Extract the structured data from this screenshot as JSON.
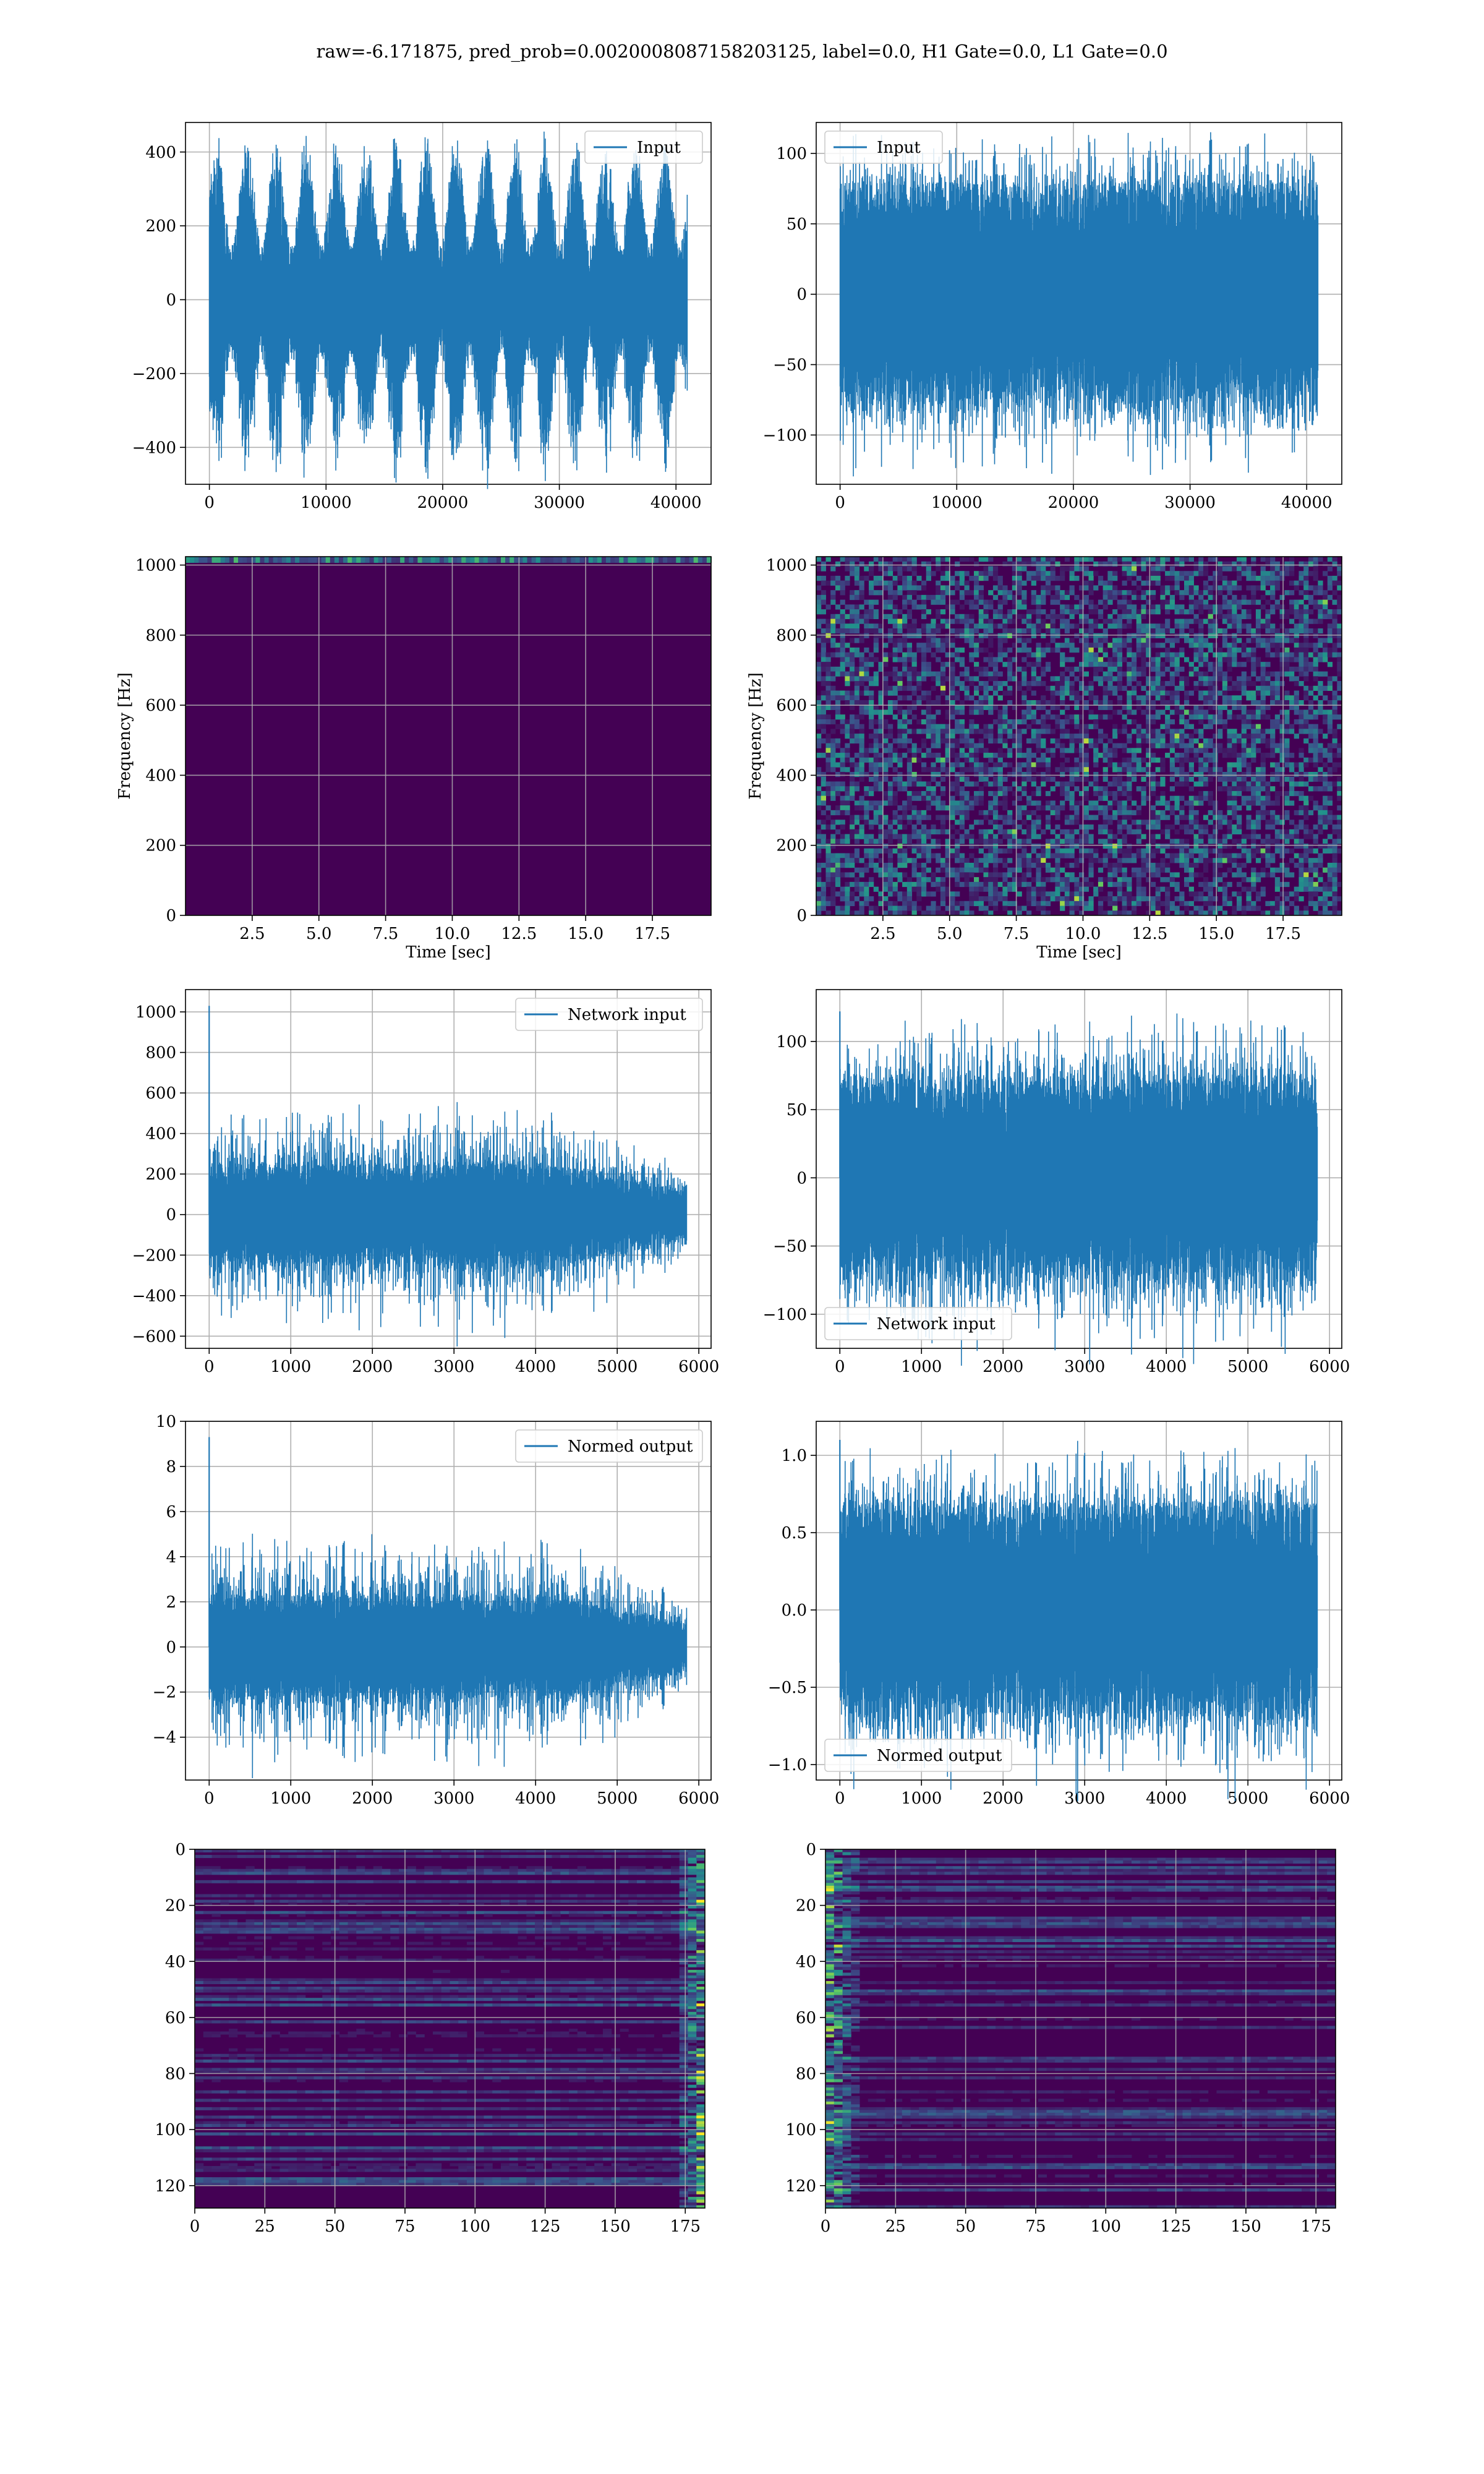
{
  "suptitle": "raw=-6.171875, pred_prob=0.0020008087158203125, label=0.0, H1 Gate=0.0, L1 Gate=0.0",
  "colors": {
    "line": "#1f77b4",
    "grid": "#b0b0b0",
    "spine": "#000000",
    "viridis_dark": "#440154",
    "viridis_mid": "#31688e",
    "viridis_green": "#35b779",
    "viridis_yellow": "#fde725"
  },
  "chart_data": [
    {
      "id": "input-h1",
      "type": "line",
      "legend": "Input",
      "legend_loc": "upper right",
      "x": [
        0,
        40960
      ],
      "xlim": [
        -2048,
        43008
      ],
      "ylim": [
        -500,
        480
      ],
      "xticks": [
        0,
        10000,
        20000,
        30000,
        40000
      ],
      "yticks": [
        -400,
        -200,
        0,
        200,
        400
      ],
      "ytick_labels": [
        "−400",
        "−200",
        "0",
        "200",
        "400"
      ],
      "envelope": {
        "amp_min": 150,
        "amp_max": 470,
        "cycles": 16,
        "noise": 0.25
      }
    },
    {
      "id": "input-l1",
      "type": "line",
      "legend": "Input",
      "legend_loc": "upper left",
      "x": [
        0,
        40960
      ],
      "xlim": [
        -2048,
        43008
      ],
      "ylim": [
        -135,
        122
      ],
      "xticks": [
        0,
        10000,
        20000,
        30000,
        40000
      ],
      "yticks": [
        -100,
        -50,
        0,
        50,
        100
      ],
      "ytick_labels": [
        "−100",
        "−50",
        "0",
        "50",
        "100"
      ],
      "envelope": {
        "amp_min": 80,
        "amp_max": 120,
        "cycles": 0,
        "noise": 0.2
      }
    },
    {
      "id": "spec-h1",
      "type": "heatmap",
      "cmap": "viridis",
      "pattern": "top-band",
      "xlabel": "Time [sec]",
      "ylabel": "Frequency [Hz]",
      "xlim": [
        0,
        19.7
      ],
      "ylim": [
        0,
        1024
      ],
      "xticks": [
        2.5,
        5.0,
        7.5,
        10.0,
        12.5,
        15.0,
        17.5
      ],
      "yticks": [
        0,
        200,
        400,
        600,
        800,
        1000
      ]
    },
    {
      "id": "spec-l1",
      "type": "heatmap",
      "cmap": "viridis",
      "pattern": "noise",
      "xlabel": "Time [sec]",
      "ylabel": "Frequency [Hz]",
      "xlim": [
        0,
        19.7
      ],
      "ylim": [
        0,
        1024
      ],
      "xticks": [
        2.5,
        5.0,
        7.5,
        10.0,
        12.5,
        15.0,
        17.5
      ],
      "yticks": [
        0,
        200,
        400,
        600,
        800,
        1000
      ]
    },
    {
      "id": "network-input-h1",
      "type": "line",
      "legend": "Network input",
      "legend_loc": "upper right",
      "x": [
        0,
        5850
      ],
      "xlim": [
        -290,
        6150
      ],
      "ylim": [
        -660,
        1110
      ],
      "xticks": [
        0,
        1000,
        2000,
        3000,
        4000,
        5000,
        6000
      ],
      "yticks": [
        -600,
        -400,
        -200,
        0,
        200,
        400,
        600,
        800,
        1000
      ],
      "ytick_labels": [
        "−600",
        "−400",
        "−200",
        "0",
        "200",
        "400",
        "600",
        "800",
        "1000"
      ],
      "spike": {
        "x": 0,
        "y": 1030
      },
      "envelope": {
        "amp_min": 250,
        "amp_max": 560,
        "cycles": 0,
        "noise": 0.25,
        "taper": 0.55
      }
    },
    {
      "id": "network-input-l1",
      "type": "line",
      "legend": "Network input",
      "legend_loc": "lower left",
      "x": [
        0,
        5850
      ],
      "xlim": [
        -290,
        6150
      ],
      "ylim": [
        -125,
        138
      ],
      "xticks": [
        0,
        1000,
        2000,
        3000,
        4000,
        5000,
        6000
      ],
      "yticks": [
        -100,
        -50,
        0,
        50,
        100
      ],
      "ytick_labels": [
        "−100",
        "−50",
        "0",
        "50",
        "100"
      ],
      "spike": {
        "x": 0,
        "y": 122
      },
      "envelope": {
        "amp_min": 75,
        "amp_max": 125,
        "cycles": 0,
        "noise": 0.2
      }
    },
    {
      "id": "normed-output-h1",
      "type": "line",
      "legend": "Normed output",
      "legend_loc": "upper right",
      "x": [
        0,
        5850
      ],
      "xlim": [
        -290,
        6150
      ],
      "ylim": [
        -5.9,
        10.0
      ],
      "xticks": [
        0,
        1000,
        2000,
        3000,
        4000,
        5000,
        6000
      ],
      "yticks": [
        -4,
        -2,
        0,
        2,
        4,
        6,
        8,
        10
      ],
      "ytick_labels": [
        "−4",
        "−2",
        "0",
        "2",
        "4",
        "6",
        "8",
        "10"
      ],
      "spike": {
        "x": 0,
        "y": 9.3
      },
      "envelope": {
        "amp_min": 2.3,
        "amp_max": 5.2,
        "cycles": 0,
        "noise": 0.25,
        "taper": 0.55
      }
    },
    {
      "id": "normed-output-l1",
      "type": "line",
      "legend": "Normed output",
      "legend_loc": "lower left",
      "x": [
        0,
        5850
      ],
      "xlim": [
        -290,
        6150
      ],
      "ylim": [
        -1.1,
        1.22
      ],
      "xticks": [
        0,
        1000,
        2000,
        3000,
        4000,
        5000,
        6000
      ],
      "yticks": [
        -1.0,
        -0.5,
        0.0,
        0.5,
        1.0
      ],
      "ytick_labels": [
        "−1.0",
        "−0.5",
        "0.0",
        "0.5",
        "1.0"
      ],
      "spike": {
        "x": 0,
        "y": 1.1
      },
      "envelope": {
        "amp_min": 0.7,
        "amp_max": 1.1,
        "cycles": 0,
        "noise": 0.2
      }
    },
    {
      "id": "features-h1",
      "type": "heatmap",
      "cmap": "viridis",
      "pattern": "rows-right-edge",
      "xlim": [
        0,
        182
      ],
      "ylim": [
        128,
        0
      ],
      "y_inverted": true,
      "xticks": [
        0,
        25,
        50,
        75,
        100,
        125,
        150,
        175
      ],
      "yticks": [
        0,
        20,
        40,
        60,
        80,
        100,
        120
      ]
    },
    {
      "id": "features-l1",
      "type": "heatmap",
      "cmap": "viridis",
      "pattern": "rows-left-edge",
      "xlim": [
        0,
        182
      ],
      "ylim": [
        128,
        0
      ],
      "y_inverted": true,
      "xticks": [
        0,
        25,
        50,
        75,
        100,
        125,
        150,
        175
      ],
      "yticks": [
        0,
        20,
        40,
        60,
        80,
        100,
        120
      ]
    }
  ]
}
